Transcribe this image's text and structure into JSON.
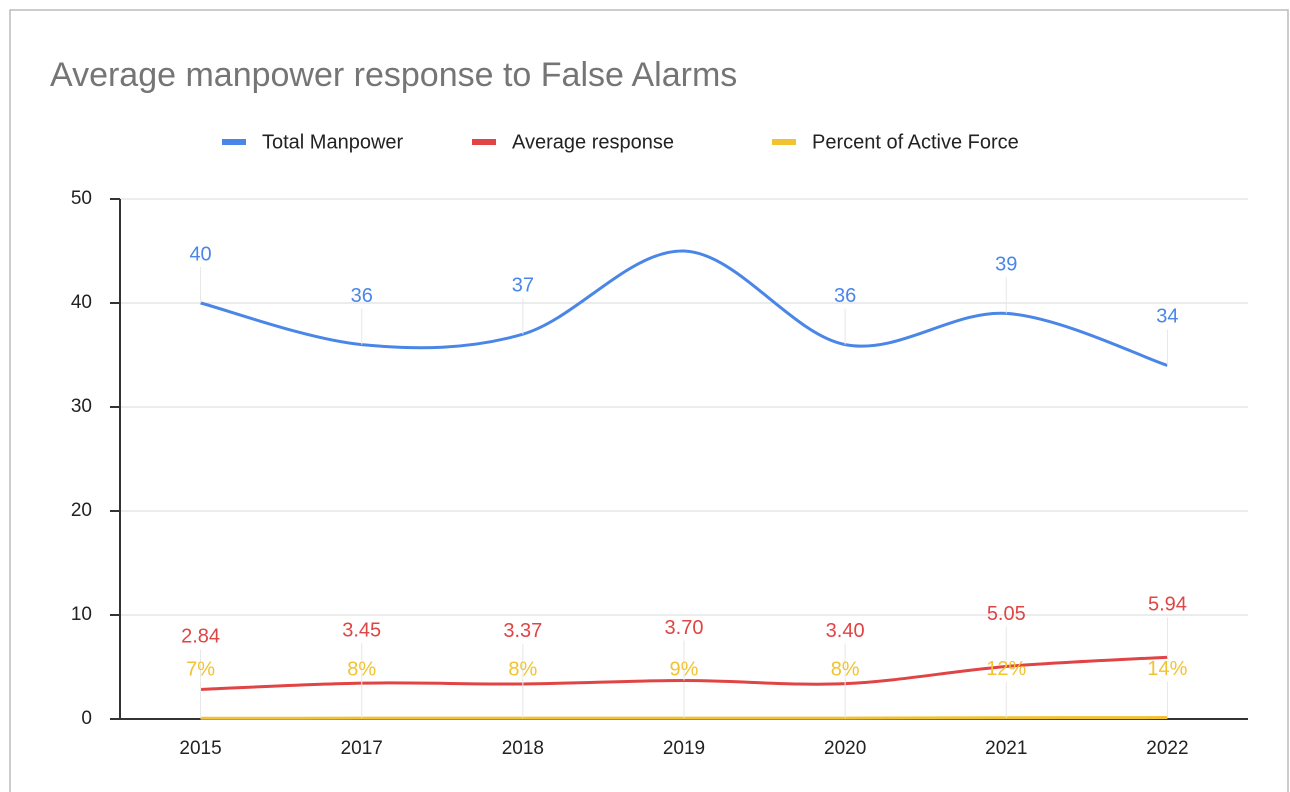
{
  "chart_data": {
    "type": "line",
    "title": "Average manpower response to False Alarms",
    "categories": [
      "2015",
      "2017",
      "2018",
      "2019",
      "2020",
      "2021",
      "2022"
    ],
    "series": [
      {
        "name": "Total Manpower",
        "color": "#4a86e8",
        "values": [
          40,
          36,
          37,
          45,
          36,
          39,
          34
        ],
        "value_labels": [
          "40",
          "36",
          "37",
          null,
          "36",
          "39",
          "34"
        ]
      },
      {
        "name": "Average response",
        "color": "#e04444",
        "values": [
          2.84,
          3.45,
          3.37,
          3.7,
          3.4,
          5.05,
          5.94
        ],
        "value_labels": [
          "2.84",
          "3.45",
          "3.37",
          "3.70",
          "3.40",
          "5.05",
          "5.94"
        ]
      },
      {
        "name": "Percent of Active Force",
        "color": "#f1c232",
        "values": [
          0.07,
          0.08,
          0.08,
          0.09,
          0.08,
          0.12,
          0.14
        ],
        "value_labels": [
          "7%",
          "8%",
          "8%",
          "9%",
          "8%",
          "12%",
          "14%"
        ]
      }
    ],
    "ylim": [
      0,
      50
    ],
    "yticks": [
      0,
      10,
      20,
      30,
      40,
      50
    ],
    "grid": true,
    "legend": "top"
  }
}
